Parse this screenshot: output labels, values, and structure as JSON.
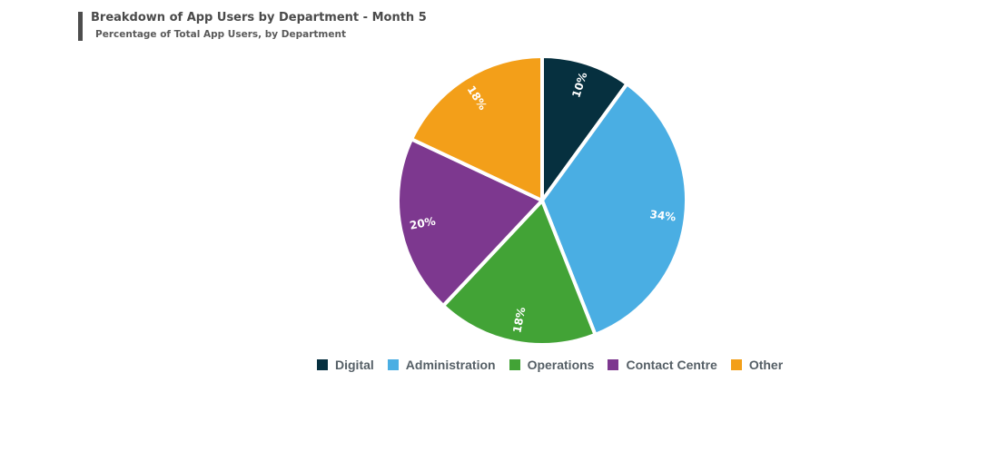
{
  "chart_data": {
    "type": "pie",
    "title": "Breakdown of App Users by Department - Month 5",
    "subtitle": "Percentage of Total App Users, by Department",
    "categories": [
      "Digital",
      "Administration",
      "Operations",
      "Contact Centre",
      "Other"
    ],
    "values": [
      10,
      34,
      18,
      20,
      18
    ],
    "labels": [
      "10%",
      "34%",
      "18%",
      "20%",
      "18%"
    ],
    "colors": [
      "#06303f",
      "#4aaee3",
      "#42a336",
      "#7d388f",
      "#f39f19"
    ],
    "legend_position": "bottom-center",
    "start_angle_deg": 0,
    "direction": "clockwise"
  }
}
